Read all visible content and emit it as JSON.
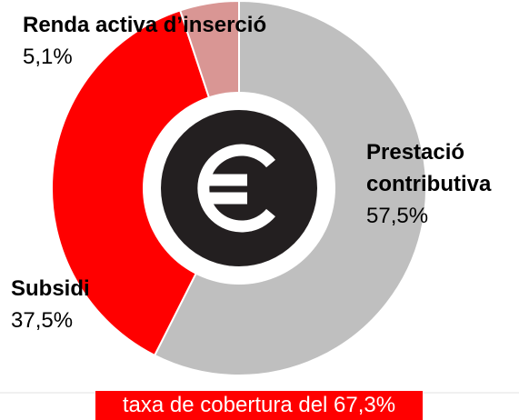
{
  "chart_data": {
    "type": "donut",
    "categories": [
      "Prestació contributiva",
      "Subsidi",
      "Renda activa d’inserció"
    ],
    "values": [
      57.5,
      37.5,
      5.1
    ],
    "value_labels": [
      "57,5%",
      "37,5%",
      "5,1%"
    ],
    "colors": [
      "#bfbfbf",
      "#ff0000",
      "#d99694"
    ],
    "annotation": "taxa de cobertura del 67,3%"
  }
}
